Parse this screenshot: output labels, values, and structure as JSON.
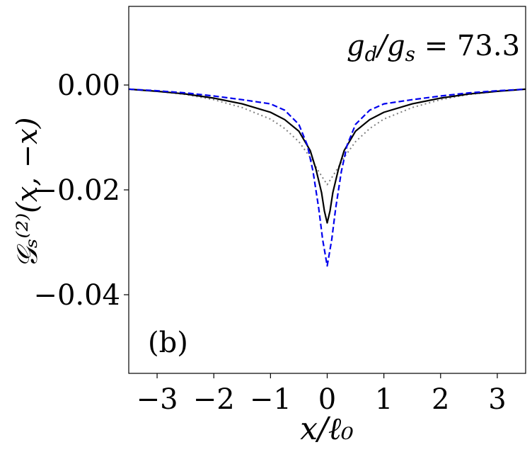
{
  "chart_data": {
    "type": "line",
    "xlabel": "x/ℓ₀",
    "ylabel": "𝒢ₛ⁽²⁾(x, −x)",
    "annotation": "g_d/g_s = 73.3",
    "panel_label": "(b)",
    "xlim": [
      -3.5,
      3.5
    ],
    "ylim": [
      -0.055,
      0.015
    ],
    "xticks": [
      -3,
      -2,
      -1,
      0,
      1,
      2,
      3
    ],
    "xtick_labels": [
      "−3",
      "−2",
      "−1",
      "0",
      "1",
      "2",
      "3"
    ],
    "yticks": [
      0.0,
      -0.02,
      -0.04
    ],
    "ytick_labels": [
      "0.00",
      "−0.02",
      "−0.04"
    ],
    "grid": false,
    "series": [
      {
        "style": "dotted",
        "color": "#808080",
        "x": [
          -3.5,
          -3.0,
          -2.5,
          -2.0,
          -1.5,
          -1.0,
          -0.75,
          -0.5,
          -0.3,
          -0.15,
          0.0,
          0.15,
          0.3,
          0.5,
          0.75,
          1.0,
          1.5,
          2.0,
          2.5,
          3.0,
          3.5
        ],
        "y": [
          -0.0008,
          -0.0012,
          -0.0018,
          -0.0028,
          -0.0043,
          -0.0065,
          -0.0083,
          -0.0108,
          -0.0138,
          -0.0165,
          -0.019,
          -0.0165,
          -0.0138,
          -0.0108,
          -0.0083,
          -0.0065,
          -0.0043,
          -0.0028,
          -0.0018,
          -0.0012,
          -0.0008
        ]
      },
      {
        "style": "solid",
        "color": "#000000",
        "x": [
          -3.5,
          -3.0,
          -2.5,
          -2.0,
          -1.5,
          -1.0,
          -0.75,
          -0.5,
          -0.3,
          -0.2,
          -0.1,
          -0.05,
          0.0,
          0.05,
          0.1,
          0.2,
          0.3,
          0.5,
          0.75,
          1.0,
          1.5,
          2.0,
          2.5,
          3.0,
          3.5
        ],
        "y": [
          -0.0008,
          -0.0012,
          -0.0017,
          -0.0025,
          -0.0036,
          -0.0052,
          -0.0066,
          -0.0088,
          -0.0125,
          -0.016,
          -0.0205,
          -0.024,
          -0.0263,
          -0.024,
          -0.0205,
          -0.016,
          -0.0125,
          -0.0088,
          -0.0066,
          -0.0052,
          -0.0036,
          -0.0025,
          -0.0017,
          -0.0012,
          -0.0008
        ]
      },
      {
        "style": "dashed",
        "color": "#0000ee",
        "x": [
          -3.5,
          -3.0,
          -2.5,
          -2.0,
          -1.5,
          -1.0,
          -0.75,
          -0.5,
          -0.35,
          -0.25,
          -0.15,
          -0.08,
          0.0,
          0.08,
          0.15,
          0.25,
          0.35,
          0.5,
          0.75,
          1.0,
          1.5,
          2.0,
          2.5,
          3.0,
          3.5
        ],
        "y": [
          -0.0008,
          -0.0011,
          -0.0015,
          -0.0021,
          -0.0028,
          -0.0036,
          -0.0048,
          -0.0075,
          -0.0115,
          -0.0165,
          -0.0235,
          -0.0295,
          -0.0345,
          -0.0295,
          -0.0235,
          -0.0165,
          -0.0115,
          -0.0075,
          -0.0048,
          -0.0036,
          -0.0028,
          -0.0021,
          -0.0015,
          -0.0011,
          -0.0008
        ]
      }
    ]
  }
}
